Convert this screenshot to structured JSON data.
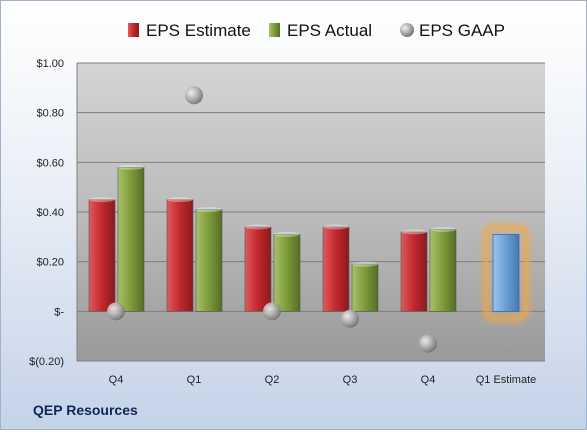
{
  "company": "QEP Resources",
  "chart_data": {
    "type": "bar",
    "categories": [
      "Q4",
      "Q1",
      "Q2",
      "Q3",
      "Q4",
      "Q1 Estimate"
    ],
    "y_tick_labels": [
      "$1.00",
      "$0.80",
      "$0.60",
      "$0.40",
      "$0.20",
      "$-",
      "$(0.20)"
    ],
    "ylim": [
      -0.2,
      1.0
    ],
    "grid": true,
    "legend_position": "top",
    "series": [
      {
        "name": "EPS Estimate",
        "kind": "bar",
        "color": "#c0282c",
        "values": [
          0.45,
          0.45,
          0.34,
          0.34,
          0.32,
          null
        ]
      },
      {
        "name": "EPS Actual",
        "kind": "bar",
        "color": "#7d9a3a",
        "values": [
          0.58,
          0.41,
          0.31,
          0.19,
          0.33,
          null
        ]
      },
      {
        "name": "EPS GAAP",
        "kind": "marker",
        "color": "#a5a5a5",
        "values": [
          0.0,
          0.87,
          0.0,
          -0.03,
          -0.13,
          null
        ]
      }
    ],
    "forecast": {
      "category": "Q1 Estimate",
      "value": 0.31,
      "color": "#6a9fd8",
      "glow": "#f5a742"
    }
  }
}
